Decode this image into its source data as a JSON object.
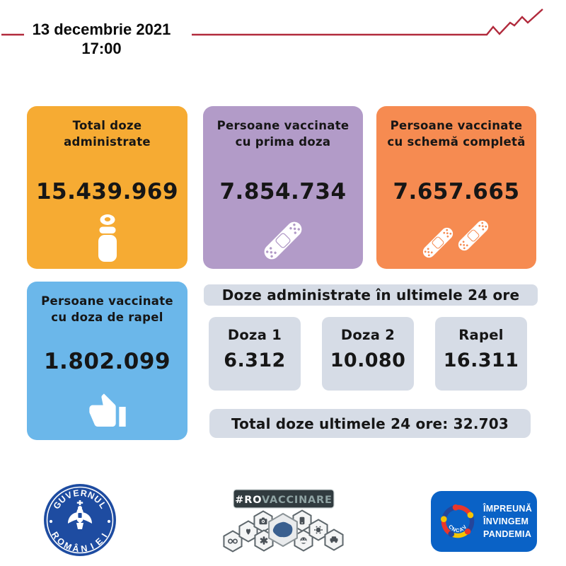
{
  "header": {
    "date": "13 decembrie 2021",
    "time": "17:00"
  },
  "colors": {
    "accent_red": "#B12A3C",
    "orange": "#F6AB33",
    "purple": "#B29BC8",
    "coral": "#F68B51",
    "blue": "#6BB7EA",
    "panel_gray": "#D6DCE6",
    "text": "#161616",
    "gov_blue": "#1E4CA1",
    "cncav_blue": "#0A62C6",
    "rovaccinare_bar": "#313B3F"
  },
  "cards": {
    "total_doses": {
      "title": "Total doze administrate",
      "value": "15.439.969",
      "icon": "vial-icon"
    },
    "first_dose": {
      "title": "Persoane vaccinate cu prima doza",
      "value": "7.854.734",
      "icon": "bandage-icon"
    },
    "full_scheme": {
      "title": "Persoane vaccinate cu schemă completă",
      "value": "7.657.665",
      "icon": "double-bandage-icon"
    },
    "booster": {
      "title": "Persoane vaccinate cu doza de rapel",
      "value": "1.802.099",
      "icon": "thumbs-up-icon"
    }
  },
  "last_24h": {
    "title": "Doze administrate în ultimele 24 ore",
    "doses": [
      {
        "label": "Doza 1",
        "value": "6.312"
      },
      {
        "label": "Doza 2",
        "value": "10.080"
      },
      {
        "label": "Rapel",
        "value": "16.311"
      }
    ],
    "total_label": "Total doze ultimele 24 ore: 32.703"
  },
  "footer": {
    "government_seal": {
      "top_text": "GUVERNUL",
      "bottom_text": "ROMÂNIEI"
    },
    "rovaccinare": {
      "prefix": "#RO",
      "suffix": "VACCINARE",
      "hexagon_icons": [
        "goggles-icon",
        "heart-icon",
        "camera-icon",
        "medical-star-icon",
        "romania-map-icon",
        "phone-icon",
        "mask-icon",
        "virus-icon",
        "car-icon"
      ]
    },
    "cncav": {
      "name": "CNCAV",
      "slogan_line1": "ÎMPREUNĂ",
      "slogan_line2": "ÎNVINGEM",
      "slogan_line3": "PANDEMIA"
    }
  }
}
